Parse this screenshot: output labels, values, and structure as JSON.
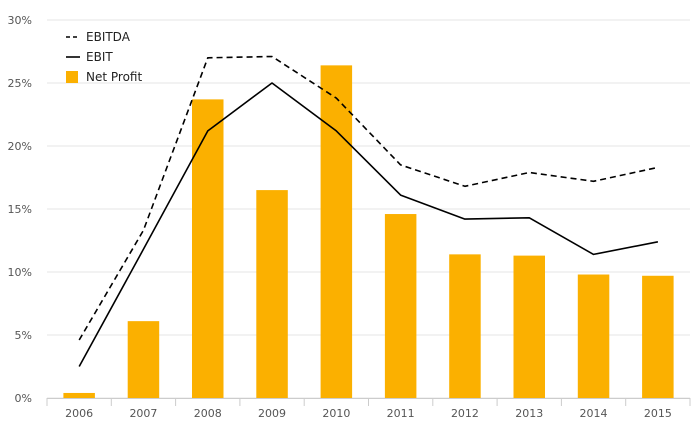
{
  "chart_data": {
    "type": "bar",
    "categories": [
      "2006",
      "2007",
      "2008",
      "2009",
      "2010",
      "2011",
      "2012",
      "2013",
      "2014",
      "2015"
    ],
    "series": [
      {
        "name": "Net Profit",
        "type": "bar",
        "color": "#fbb000",
        "values": [
          0.4,
          6.1,
          23.7,
          16.5,
          26.4,
          14.6,
          11.4,
          11.3,
          9.8,
          9.7
        ]
      },
      {
        "name": "EBITDA",
        "type": "line",
        "style": "dashed",
        "color": "#000000",
        "values": [
          4.6,
          13.3,
          27.0,
          27.1,
          23.8,
          18.5,
          16.8,
          17.9,
          17.2,
          18.3
        ]
      },
      {
        "name": "EBIT",
        "type": "line",
        "style": "solid",
        "color": "#000000",
        "values": [
          2.5,
          11.8,
          21.2,
          25.0,
          21.2,
          16.1,
          14.2,
          14.3,
          11.4,
          12.4
        ]
      }
    ],
    "y_ticks": [
      "0%",
      "5%",
      "10%",
      "15%",
      "20%",
      "25%",
      "30%"
    ],
    "ylim": [
      0,
      30
    ],
    "title": "",
    "xlabel": "",
    "ylabel": "",
    "grid": true,
    "legend": {
      "placement": "top-left",
      "order": [
        "EBITDA",
        "EBIT",
        "Net Profit"
      ]
    }
  }
}
